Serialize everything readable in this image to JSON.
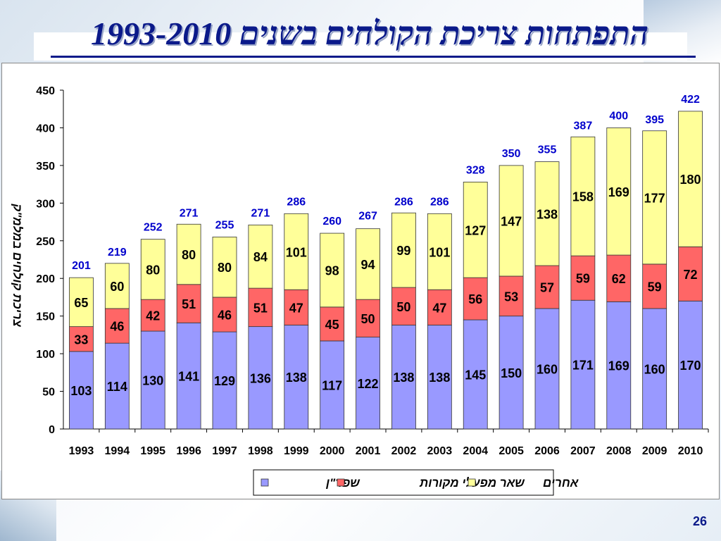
{
  "slide": {
    "title": "התפתחות צריכת הקולחים בשנים 1993-2010",
    "page_number": "26"
  },
  "colors": {
    "shafdan": "#9999FF",
    "other_sources": "#FF6666",
    "others": "#FFFF99",
    "total_label": "#0000CC",
    "title": "#0b1a8a"
  },
  "chart_data": {
    "type": "bar",
    "stacked": true,
    "title": "",
    "xlabel": "",
    "ylabel": "צריכת קולחים במלמ\"ק",
    "ylim": [
      0,
      450
    ],
    "yticks": [
      0,
      50,
      100,
      150,
      200,
      250,
      300,
      350,
      400,
      450
    ],
    "grid": false,
    "legend_position": "bottom-center",
    "categories": [
      "1993",
      "1994",
      "1995",
      "1996",
      "1997",
      "1998",
      "1999",
      "2000",
      "2001",
      "2002",
      "2003",
      "2004",
      "2005",
      "2006",
      "2007",
      "2008",
      "2009",
      "2010"
    ],
    "series": [
      {
        "name": "שפד\"ן",
        "values": [
          103,
          114,
          130,
          141,
          129,
          136,
          138,
          117,
          122,
          138,
          138,
          145,
          150,
          160,
          171,
          169,
          160,
          170
        ]
      },
      {
        "name": "שאר מפעלי מקורות",
        "values": [
          33,
          46,
          42,
          51,
          46,
          51,
          47,
          45,
          50,
          50,
          47,
          56,
          53,
          57,
          59,
          62,
          59,
          72
        ]
      },
      {
        "name": "אחרים",
        "values": [
          65,
          60,
          80,
          80,
          80,
          84,
          101,
          98,
          94,
          99,
          101,
          127,
          147,
          138,
          158,
          169,
          177,
          180
        ]
      }
    ],
    "totals": [
      201,
      219,
      252,
      271,
      255,
      271,
      286,
      260,
      267,
      286,
      286,
      328,
      350,
      355,
      387,
      400,
      395,
      422
    ]
  }
}
